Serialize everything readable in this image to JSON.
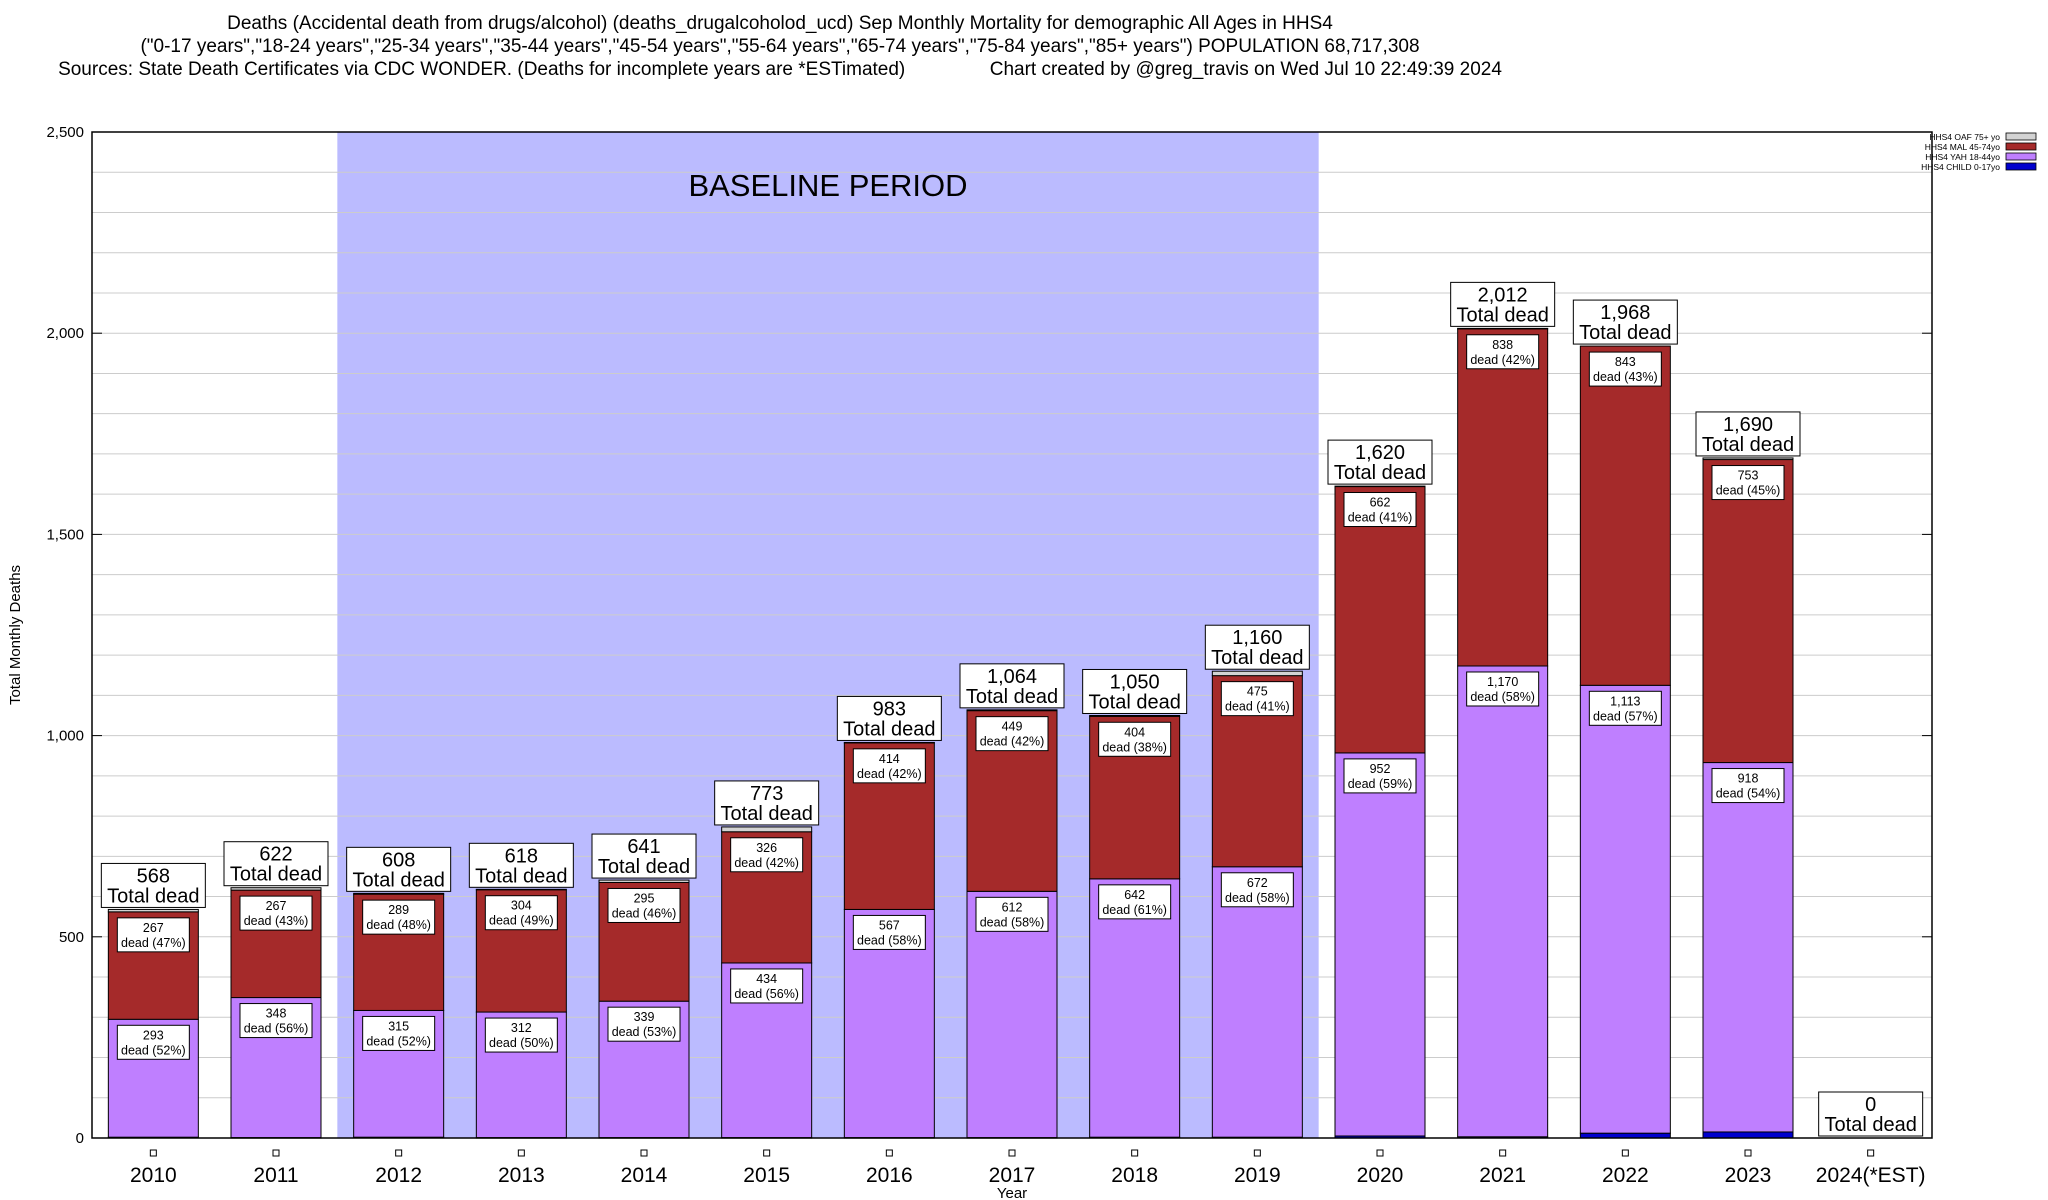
{
  "header": {
    "line1": "Deaths (Accidental death from drugs/alcohol) (deaths_drugalcoholod_ucd) Sep Monthly Mortality for demographic All Ages in HHS4",
    "line2": "(\"0-17 years\",\"18-24 years\",\"25-34 years\",\"35-44 years\",\"45-54 years\",\"55-64 years\",\"65-74 years\",\"75-84 years\",\"85+ years\") POPULATION 68,717,308",
    "line3": "Sources: State Death Certificates via CDC WONDER. (Deaths for incomplete years are *ESTimated)                Chart created by @greg_travis on Wed Jul 10 22:49:39 2024"
  },
  "colors": {
    "oaf": "#d3d3d3",
    "mal": "#a52a2a",
    "yah": "#bf7fff",
    "child": "#0000cd",
    "baseline": "#bbbbff",
    "grid": "#cccccc"
  },
  "chart_data": {
    "type": "bar",
    "stacked": true,
    "xlabel": "Year",
    "ylabel": "Total Monthly Deaths",
    "ylim": [
      0,
      2500
    ],
    "yticks": [
      0,
      500,
      1000,
      1500,
      2000,
      2500
    ],
    "ytick_labels": [
      "0",
      "500",
      "1,000",
      "1,500",
      "2,000",
      "2,500"
    ],
    "grid": true,
    "legend_position": "top-right",
    "baseline_label": "BASELINE PERIOD",
    "baseline_range": [
      "2012",
      "2019"
    ],
    "total_suffix": "Total dead",
    "segment_label_prefix": "dead",
    "categories": [
      "2010",
      "2011",
      "2012",
      "2013",
      "2014",
      "2015",
      "2016",
      "2017",
      "2018",
      "2019",
      "2020",
      "2021",
      "2022",
      "2023",
      "2024(*EST)"
    ],
    "totals": [
      568,
      622,
      608,
      618,
      641,
      773,
      983,
      1064,
      1050,
      1160,
      1620,
      2012,
      1968,
      1690,
      0
    ],
    "total_labels": [
      "568",
      "622",
      "608",
      "618",
      "641",
      "773",
      "983",
      "1,064",
      "1,050",
      "1,160",
      "1,620",
      "2,012",
      "1,968",
      "1,690",
      "0"
    ],
    "series": [
      {
        "name": "HHS4 CHILD 0-17yo",
        "key": "child",
        "values": [
          2,
          1,
          2,
          1,
          1,
          1,
          1,
          1,
          2,
          2,
          5,
          3,
          12,
          15,
          0
        ],
        "labels": [
          "",
          "",
          "",
          "",
          "",
          "",
          "",
          "",
          "",
          "",
          "",
          "",
          "",
          "",
          ""
        ]
      },
      {
        "name": "HHS4 YAH 18-44yo",
        "key": "yah",
        "values": [
          293,
          348,
          315,
          312,
          339,
          434,
          567,
          612,
          642,
          672,
          952,
          1170,
          1113,
          918,
          0
        ],
        "labels": [
          "293",
          "348",
          "315",
          "312",
          "339",
          "434",
          "567",
          "612",
          "642",
          "672",
          "952",
          "1,170",
          "1,113",
          "918",
          ""
        ],
        "pcts": [
          "52%",
          "56%",
          "52%",
          "50%",
          "53%",
          "56%",
          "58%",
          "58%",
          "61%",
          "58%",
          "59%",
          "58%",
          "57%",
          "54%",
          ""
        ]
      },
      {
        "name": "HHS4 MAL 45-74yo",
        "key": "mal",
        "values": [
          267,
          267,
          289,
          304,
          295,
          326,
          414,
          449,
          404,
          475,
          662,
          838,
          843,
          753,
          0
        ],
        "labels": [
          "267",
          "267",
          "289",
          "304",
          "295",
          "326",
          "414",
          "449",
          "404",
          "475",
          "662",
          "838",
          "843",
          "753",
          ""
        ],
        "pcts": [
          "47%",
          "43%",
          "48%",
          "49%",
          "46%",
          "42%",
          "42%",
          "42%",
          "38%",
          "41%",
          "41%",
          "42%",
          "43%",
          "45%",
          ""
        ]
      },
      {
        "name": "HHS4 OAF 75+ yo",
        "key": "oaf",
        "values": [
          6,
          6,
          2,
          1,
          6,
          12,
          1,
          2,
          2,
          11,
          1,
          1,
          0,
          4,
          0
        ],
        "labels": [
          "",
          "",
          "",
          "",
          "",
          "",
          "",
          "",
          "",
          "",
          "",
          "",
          "",
          "",
          ""
        ]
      }
    ]
  }
}
